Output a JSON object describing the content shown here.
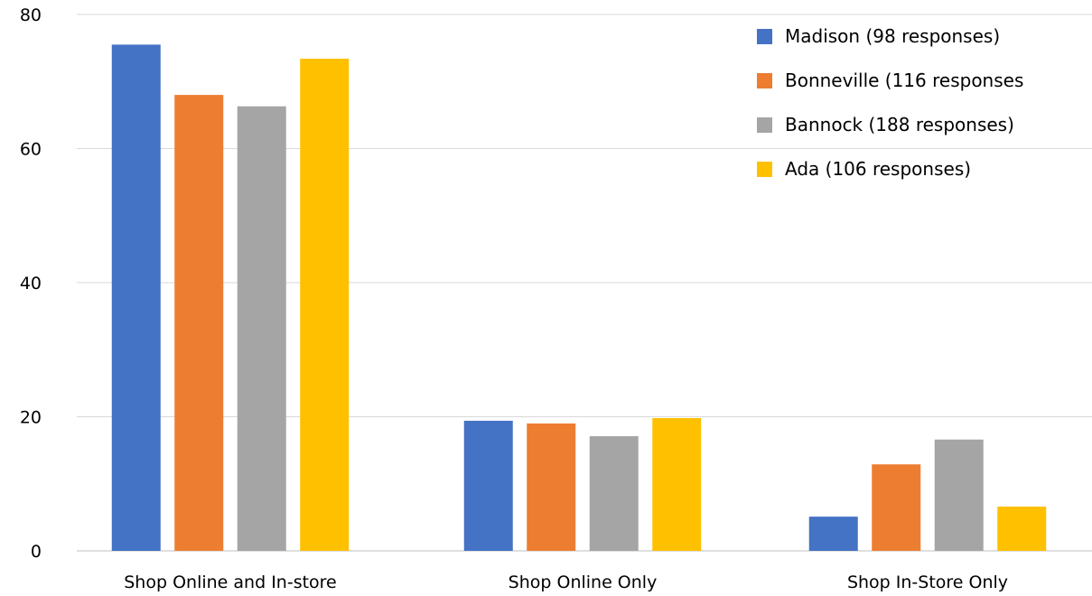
{
  "chart_data": {
    "type": "bar",
    "categories": [
      "Shop Online and In-store",
      "Shop Online Only",
      "Shop In-Store Only"
    ],
    "series": [
      {
        "name": "Madison (98 responses)",
        "color": "#4472C4",
        "values": [
          75.5,
          19.4,
          5.1
        ]
      },
      {
        "name": "Bonneville (116 responses",
        "color": "#ED7D31",
        "values": [
          68.0,
          19.0,
          12.9
        ]
      },
      {
        "name": "Bannock (188 responses)",
        "color": "#A5A5A5",
        "values": [
          66.3,
          17.1,
          16.6
        ]
      },
      {
        "name": "Ada (106 responses)",
        "color": "#FFC000",
        "values": [
          73.4,
          19.8,
          6.6
        ]
      }
    ],
    "yticks": [
      "0",
      "20",
      "40",
      "60",
      "80"
    ],
    "ylim": [
      0,
      80
    ],
    "grid": true,
    "legend_position": "top-right",
    "title": "",
    "xlabel": "",
    "ylabel": ""
  }
}
